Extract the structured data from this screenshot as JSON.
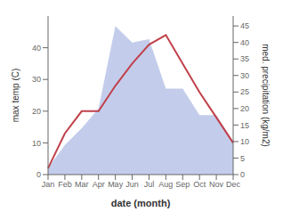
{
  "chart_data": {
    "type": "line",
    "xlabel": "date (month)",
    "ylabel": "max temp (C)",
    "y2label": "med. precipitation (kg/m2)",
    "categories": [
      "Jan",
      "Feb",
      "Mar",
      "Apr",
      "May",
      "Jun",
      "Jul",
      "Aug",
      "Sep",
      "Oct",
      "Nov",
      "Dec"
    ],
    "series": [
      {
        "type": "area",
        "axis": "y2",
        "color": "#b8c4e8",
        "values": [
          2,
          9,
          14,
          20,
          45,
          40,
          41,
          26,
          26,
          18,
          18,
          10
        ]
      },
      {
        "type": "line",
        "color": "#c0404a",
        "values": [
          2,
          13,
          20,
          20,
          28,
          35,
          41,
          44,
          35,
          26,
          18,
          10
        ]
      }
    ],
    "ylim": [
      0,
      50
    ],
    "yticks": [
      0,
      10,
      20,
      30,
      40
    ],
    "y2lim": [
      0,
      48
    ],
    "y2ticks": [
      0,
      5,
      10,
      15,
      20,
      25,
      30,
      35,
      40,
      45
    ]
  }
}
